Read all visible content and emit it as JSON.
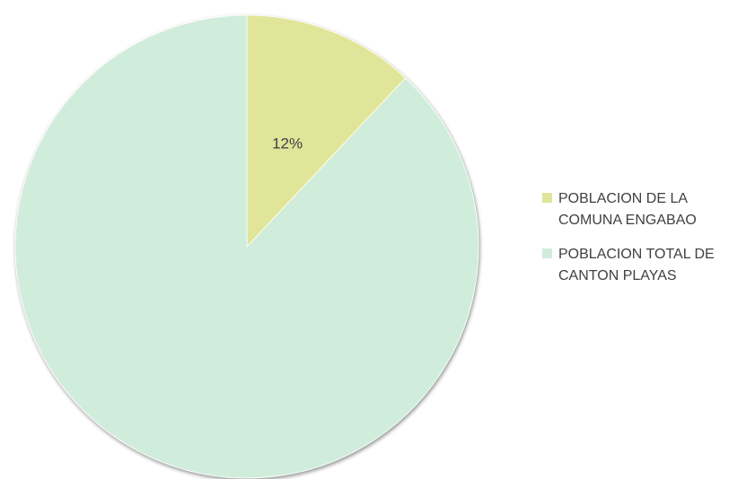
{
  "chart_data": {
    "type": "pie",
    "title": "",
    "categories": [
      "POBLACION DE LA COMUNA ENGABAO",
      "POBLACION TOTAL DE CANTON PLAYAS"
    ],
    "values": [
      12,
      88
    ],
    "unit": "%",
    "data_labels": [
      "12%",
      ""
    ],
    "colors": [
      "#e1e59a",
      "#d0eddb"
    ],
    "start_angle_deg": 0,
    "direction": "clockwise",
    "legend": {
      "position": "right",
      "entries": [
        "POBLACION DE LA COMUNA ENGABAO",
        "POBLACION TOTAL DE CANTON PLAYAS"
      ]
    }
  }
}
